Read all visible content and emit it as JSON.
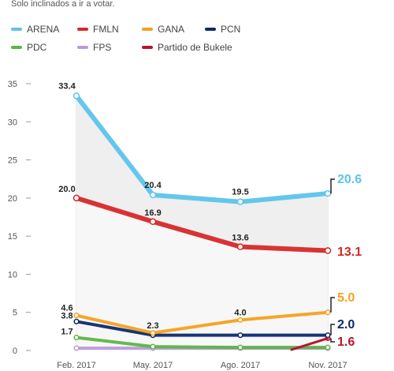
{
  "subtitle": "Solo inclinados a ir a votar.",
  "legend": [
    {
      "name": "ARENA",
      "color": "#5bc4ec"
    },
    {
      "name": "FMLN",
      "color": "#d62828"
    },
    {
      "name": "GANA",
      "color": "#f5a01a"
    },
    {
      "name": "PCN",
      "color": "#0c2a6e"
    },
    {
      "name": "PDC",
      "color": "#5cb545"
    },
    {
      "name": "FPS",
      "color": "#b99bd8"
    },
    {
      "name": "Partido de Bukele",
      "color": "#b5172e"
    }
  ],
  "chart_data": {
    "type": "line",
    "title": "",
    "xlabel": "",
    "ylabel": "",
    "categories": [
      "Feb. 2017",
      "May. 2017",
      "Ago. 2017",
      "Nov. 2017"
    ],
    "ylim": [
      0,
      35
    ],
    "yticks": [
      "0",
      "5",
      "10",
      "15",
      "20",
      "25",
      "30",
      "35"
    ],
    "grid": false,
    "legend_position": "top",
    "series": [
      {
        "name": "ARENA",
        "color": "#5bc4ec",
        "values": [
          33.4,
          20.4,
          19.5,
          20.6
        ],
        "point_labels": [
          "33.4",
          "20.4",
          "19.5",
          ""
        ],
        "end_label": "20.6"
      },
      {
        "name": "FMLN",
        "color": "#d62828",
        "values": [
          20.0,
          16.9,
          13.6,
          13.1
        ],
        "point_labels": [
          "20.0",
          "16.9",
          "13.6",
          ""
        ],
        "end_label": "13.1"
      },
      {
        "name": "GANA",
        "color": "#f5a01a",
        "values": [
          4.6,
          2.3,
          4.0,
          5.0
        ],
        "point_labels": [
          "4.6",
          "2.3",
          "4.0",
          ""
        ],
        "end_label": "5.0"
      },
      {
        "name": "PCN",
        "color": "#0c2a6e",
        "values": [
          3.8,
          2.0,
          2.0,
          2.0
        ],
        "point_labels": [
          "3.8",
          "",
          "",
          ""
        ],
        "end_label": "2.0"
      },
      {
        "name": "PDC",
        "color": "#5cb545",
        "values": [
          1.7,
          0.5,
          0.4,
          0.4
        ],
        "point_labels": [
          "1.7",
          "",
          "",
          ""
        ],
        "end_label": ""
      },
      {
        "name": "FPS",
        "color": "#b99bd8",
        "values": [
          0.3,
          0.3,
          0.3,
          0.3
        ],
        "point_labels": [
          "",
          "",
          "",
          ""
        ],
        "end_label": ""
      },
      {
        "name": "Partido de Bukele",
        "color": "#b5172e",
        "values": [
          null,
          null,
          null,
          1.6
        ],
        "point_labels": [
          "",
          "",
          "",
          ""
        ],
        "end_label": "1.6"
      }
    ]
  }
}
